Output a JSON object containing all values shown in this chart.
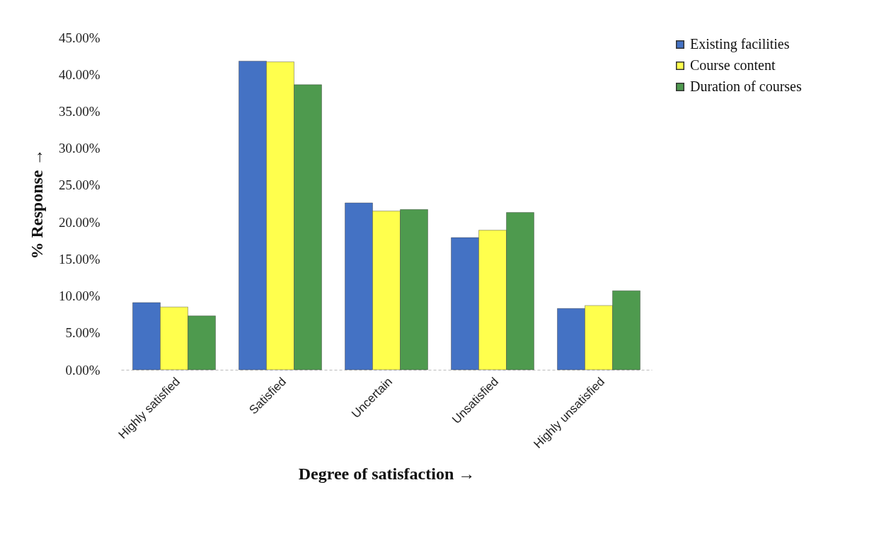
{
  "chart_data": {
    "type": "bar",
    "xlabel": "Degree of satisfaction →",
    "ylabel": "% Response →",
    "categories": [
      "Highly satisfied",
      "Satisfied",
      "Uncertain",
      "Unsatisfied",
      "Highly unsatisfied"
    ],
    "series": [
      {
        "name": "Existing facilities",
        "color": "#4472c4",
        "values": [
          9.1,
          41.8,
          22.6,
          17.9,
          8.3
        ]
      },
      {
        "name": "Course content",
        "color": "#ffff4d",
        "values": [
          8.5,
          41.7,
          21.5,
          18.9,
          8.7
        ]
      },
      {
        "name": "Duration of courses",
        "color": "#4e9a4e",
        "values": [
          7.3,
          38.6,
          21.7,
          21.3,
          10.7
        ]
      }
    ],
    "ylim": [
      0,
      45
    ],
    "yticks": [
      {
        "value": 0,
        "label": "0.00%"
      },
      {
        "value": 5,
        "label": "5.00%"
      },
      {
        "value": 10,
        "label": "10.00%"
      },
      {
        "value": 15,
        "label": "15.00%"
      },
      {
        "value": 20,
        "label": "20.00%"
      },
      {
        "value": 25,
        "label": "25.00%"
      },
      {
        "value": 30,
        "label": "30.00%"
      },
      {
        "value": 35,
        "label": "35.00%"
      },
      {
        "value": 40,
        "label": "40.00%"
      },
      {
        "value": 45,
        "label": "45.00%"
      }
    ],
    "grid": false,
    "legend": "right"
  }
}
